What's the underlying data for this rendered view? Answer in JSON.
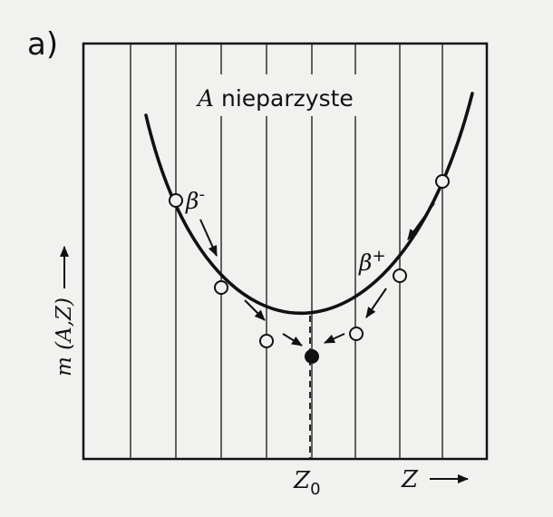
{
  "panel_label": "a)",
  "title_italic": "A",
  "title_rest": " nieparzyste",
  "beta_minus": "β",
  "beta_minus_sup": "-",
  "beta_plus": "β",
  "beta_plus_sup": "+",
  "y_axis_label": "m (A,Z)",
  "z0_label": "Z",
  "z0_subscript": "0",
  "z_axis_label": "Z",
  "colors": {
    "ink": "#111111",
    "paper": "#f1f1ef"
  }
}
